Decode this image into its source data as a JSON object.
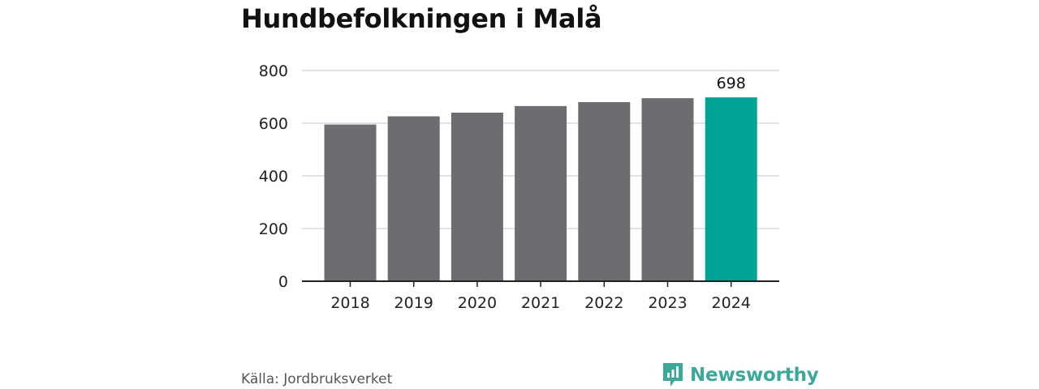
{
  "title": "Hundbefolkningen i Malå",
  "source": "Källa: Jordbruksverket",
  "brand": {
    "name": "Newsworthy",
    "icon": "newsworthy-logo-icon"
  },
  "colors": {
    "bar": "#6d6c71",
    "highlight": "#00a497",
    "grid": "#d9d9d9",
    "axis": "#222222",
    "brand": "#3aa89a"
  },
  "chart_data": {
    "type": "bar",
    "categories": [
      "2018",
      "2019",
      "2020",
      "2021",
      "2022",
      "2023",
      "2024"
    ],
    "values": [
      595,
      626,
      640,
      665,
      680,
      695,
      698
    ],
    "highlight_index": 6,
    "data_labels": [
      {
        "index": 6,
        "text": "698"
      }
    ],
    "ylim": [
      0,
      800
    ],
    "yticks": [
      0,
      200,
      400,
      600,
      800
    ],
    "grid": true,
    "title": "Hundbefolkningen i Malå",
    "xlabel": "",
    "ylabel": ""
  }
}
